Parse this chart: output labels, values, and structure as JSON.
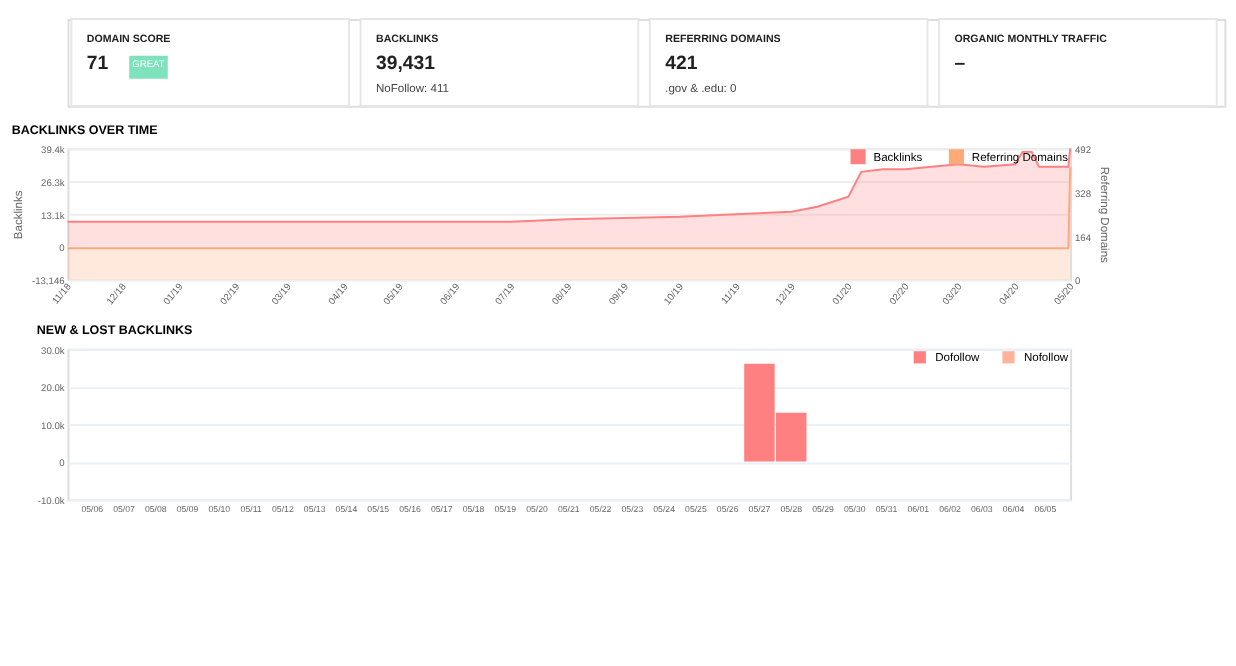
{
  "chart_data": [
    {
      "type": "other",
      "annotations": [
        "DOMAIN SCORE",
        "71",
        "GREAT",
        "BACKLINKS",
        "39,431",
        "NoFollow: 411",
        "REFERRING DOMAINS",
        "421",
        ".gov & .edu: 0",
        "ORGANIC MONTHLY TRAFFIC",
        "–"
      ]
    },
    {
      "type": "area",
      "title": "BACKLINKS OVER TIME",
      "ylabel": "Backlinks",
      "y2label": "Referring Domains",
      "legend": "top right",
      "grid": "y",
      "xlim": [
        "2018-11-01",
        "2020-05-01"
      ],
      "xticks": [
        {
          "value": "2018-11-01",
          "label": "11/18"
        },
        {
          "value": "2018-12-01",
          "label": "12/18"
        },
        {
          "value": "2019-01-01",
          "label": "01/19"
        },
        {
          "value": "2019-02-01",
          "label": "02/19"
        },
        {
          "value": "2019-03-01",
          "label": "03/19"
        },
        {
          "value": "2019-04-01",
          "label": "04/19"
        },
        {
          "value": "2019-05-01",
          "label": "05/19"
        },
        {
          "value": "2019-06-01",
          "label": "06/19"
        },
        {
          "value": "2019-07-01",
          "label": "07/19"
        },
        {
          "value": "2019-08-01",
          "label": "08/19"
        },
        {
          "value": "2019-09-01",
          "label": "09/19"
        },
        {
          "value": "2019-10-01",
          "label": "10/19"
        },
        {
          "value": "2019-11-01",
          "label": "11/19"
        },
        {
          "value": "2019-12-01",
          "label": "12/19"
        },
        {
          "value": "2020-01-01",
          "label": "01/20"
        },
        {
          "value": "2020-02-01",
          "label": "02/20"
        },
        {
          "value": "2020-03-01",
          "label": "03/20"
        },
        {
          "value": "2020-04-01",
          "label": "04/20"
        },
        {
          "value": "2020-05-01",
          "label": "05/20"
        }
      ],
      "ylim": [
        -13146,
        39438
      ],
      "yticks": [
        {
          "value": -13146,
          "label": "-13,146"
        },
        0,
        {
          "value": 13146,
          "label": "13.1k"
        },
        {
          "value": 26292,
          "label": "26.3k"
        },
        {
          "value": 39438,
          "label": "39.4k"
        }
      ],
      "y2lim": [
        0,
        492
      ],
      "y2ticks": [
        0,
        164,
        328,
        492
      ],
      "series": [
        {
          "name": "Backlinks",
          "color": "#ff8080",
          "x": [
            "2018-11-01",
            "2019-07-01",
            "2019-08-01",
            "2019-10-01",
            "2019-12-01",
            "2019-12-15",
            "2020-01-01",
            "2020-01-08",
            "2020-01-20",
            "2020-02-01",
            "2020-03-01",
            "2020-03-15",
            "2020-04-01",
            "2020-04-05",
            "2020-04-10",
            "2020-04-14",
            "2020-04-30",
            "2020-05-01"
          ],
          "values": [
            10000,
            10000,
            11000,
            12000,
            14000,
            16000,
            20000,
            30000,
            31000,
            31000,
            33000,
            32000,
            33000,
            38000,
            38000,
            32000,
            32000,
            39400
          ]
        },
        {
          "name": "Referring Domains",
          "color": "#ffa878",
          "axis": "y2",
          "x": [
            "2018-11-01",
            "2020-04-30",
            "2020-05-01"
          ],
          "values": [
            117,
            117,
            421
          ]
        }
      ]
    },
    {
      "type": "bar",
      "title": "NEW & LOST BACKLINKS",
      "legend": "top right",
      "grid": "y",
      "stacked": true,
      "categories": [
        "05/06",
        "05/07",
        "05/08",
        "05/09",
        "05/10",
        "05/11",
        "05/12",
        "05/13",
        "05/14",
        "05/15",
        "05/16",
        "05/17",
        "05/18",
        "05/19",
        "05/20",
        "05/21",
        "05/22",
        "05/23",
        "05/24",
        "05/25",
        "05/26",
        "05/27",
        "05/28",
        "05/29",
        "05/30",
        "05/31",
        "06/01",
        "06/02",
        "06/03",
        "06/04",
        "06/05"
      ],
      "ylim": [
        -10000,
        30000
      ],
      "yticks": [
        {
          "value": -10000,
          "label": "-10.0k"
        },
        0,
        {
          "value": 10000,
          "label": "10.0k"
        },
        {
          "value": 20000,
          "label": "20.0k"
        },
        {
          "value": 30000,
          "label": "30.0k"
        }
      ],
      "series": [
        {
          "name": "Dofollow",
          "color": "#ff8080",
          "values": [
            0,
            0,
            0,
            0,
            0,
            0,
            0,
            0,
            0,
            0,
            0,
            0,
            0,
            0,
            0,
            0,
            0,
            0,
            0,
            0,
            0,
            26000,
            13000,
            0,
            0,
            0,
            0,
            0,
            0,
            0,
            0
          ]
        },
        {
          "name": "Nofollow",
          "color": "#ffb39a",
          "values": [
            0,
            0,
            0,
            0,
            0,
            0,
            0,
            0,
            0,
            0,
            0,
            0,
            0,
            0,
            0,
            0,
            0,
            0,
            0,
            0,
            0,
            0,
            0,
            0,
            0,
            0,
            0,
            0,
            0,
            0,
            0
          ]
        }
      ]
    }
  ]
}
